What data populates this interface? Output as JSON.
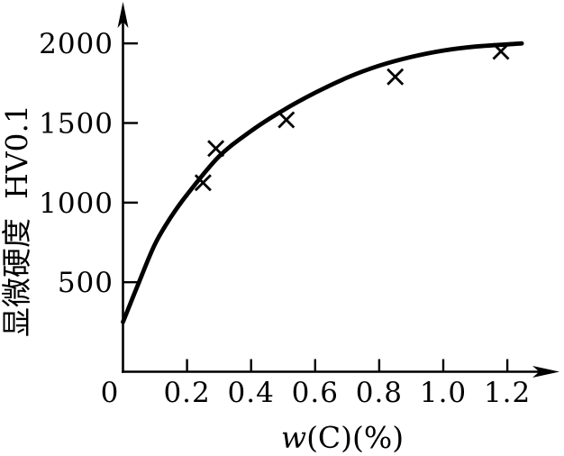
{
  "figure": {
    "background_color": "#ffffff",
    "ink_color": "#000000"
  },
  "chart_data": {
    "type": "scatter",
    "title": "",
    "xlabel": "w(C)(%)",
    "xlabel_italic": "w",
    "xlabel_rest": "(C)(%)",
    "ylabel": "显微硬度  HV0.1",
    "marker": "x",
    "grid": false,
    "legend_position": "none",
    "xlim": [
      0,
      1.3
    ],
    "ylim": [
      0,
      2250
    ],
    "origin_label": "0",
    "x_ticks": [
      {
        "value": 0.2,
        "label": "0.2"
      },
      {
        "value": 0.4,
        "label": "0.4"
      },
      {
        "value": 0.6,
        "label": "0.6"
      },
      {
        "value": 0.8,
        "label": "0.8"
      },
      {
        "value": 1.0,
        "label": "1.0"
      },
      {
        "value": 1.2,
        "label": "1.2"
      }
    ],
    "y_ticks": [
      {
        "value": 500,
        "label": "500"
      },
      {
        "value": 1000,
        "label": "1000"
      },
      {
        "value": 1500,
        "label": "1500"
      },
      {
        "value": 2000,
        "label": "2000"
      }
    ],
    "points": [
      {
        "x": 0.25,
        "y": 1125
      },
      {
        "x": 0.29,
        "y": 1340
      },
      {
        "x": 0.51,
        "y": 1520
      },
      {
        "x": 0.85,
        "y": 1790
      },
      {
        "x": 1.18,
        "y": 1950
      }
    ],
    "curve": [
      {
        "x": 0.0,
        "y": 250
      },
      {
        "x": 0.05,
        "y": 500
      },
      {
        "x": 0.1,
        "y": 740
      },
      {
        "x": 0.15,
        "y": 910
      },
      {
        "x": 0.2,
        "y": 1050
      },
      {
        "x": 0.3,
        "y": 1290
      },
      {
        "x": 0.4,
        "y": 1450
      },
      {
        "x": 0.5,
        "y": 1580
      },
      {
        "x": 0.6,
        "y": 1690
      },
      {
        "x": 0.7,
        "y": 1785
      },
      {
        "x": 0.8,
        "y": 1860
      },
      {
        "x": 0.9,
        "y": 1915
      },
      {
        "x": 1.0,
        "y": 1955
      },
      {
        "x": 1.1,
        "y": 1980
      },
      {
        "x": 1.245,
        "y": 2000
      }
    ]
  }
}
